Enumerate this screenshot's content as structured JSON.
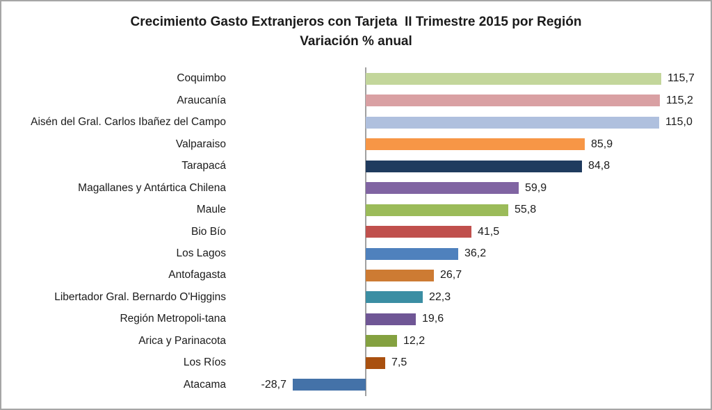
{
  "title": {
    "line1": "Crecimiento Gasto Extranjeros con Tarjeta  II Trimestre 2015 por Región",
    "line2": "Variación % anual"
  },
  "chart_data": {
    "type": "bar",
    "orientation": "horizontal",
    "title": "Crecimiento Gasto Extranjeros con Tarjeta  II Trimestre 2015 por Región",
    "subtitle": "Variación % anual",
    "xlabel": "",
    "ylabel": "",
    "grid": false,
    "legend": "none",
    "decimal_separator": ",",
    "xlim": [
      -53,
      135
    ],
    "axis_color": "#a0a0a0",
    "categories": [
      "Coquimbo",
      "Araucanía",
      "Aisén del Gral. Carlos Ibañez del Campo",
      "Valparaiso",
      "Tarapacá",
      "Magallanes y Antártica Chilena",
      "Maule",
      "Bio Bío",
      "Los Lagos",
      "Antofagasta",
      "Libertador Gral. Bernardo O'Higgins",
      "Región Metropoli-tana",
      "Arica y Parinacota",
      "Los Ríos",
      "Atacama"
    ],
    "values": [
      115.7,
      115.2,
      115.0,
      85.9,
      84.8,
      59.9,
      55.8,
      41.5,
      36.2,
      26.7,
      22.3,
      19.6,
      12.2,
      7.5,
      -28.7
    ],
    "value_labels": [
      "115,7",
      "115,2",
      "115,0",
      "85,9",
      "84,8",
      "59,9",
      "55,8",
      "41,5",
      "36,2",
      "26,7",
      "22,3",
      "19,6",
      "12,2",
      "7,5",
      "-28,7"
    ],
    "bar_colors": [
      "#c3d69b",
      "#d9a0a3",
      "#afc0de",
      "#f79646",
      "#1f3b5e",
      "#8064a2",
      "#9bbb59",
      "#c0504d",
      "#4f81bd",
      "#cd7b33",
      "#3b8ea3",
      "#6f5695",
      "#84a140",
      "#a9500f",
      "#4472a8"
    ]
  }
}
